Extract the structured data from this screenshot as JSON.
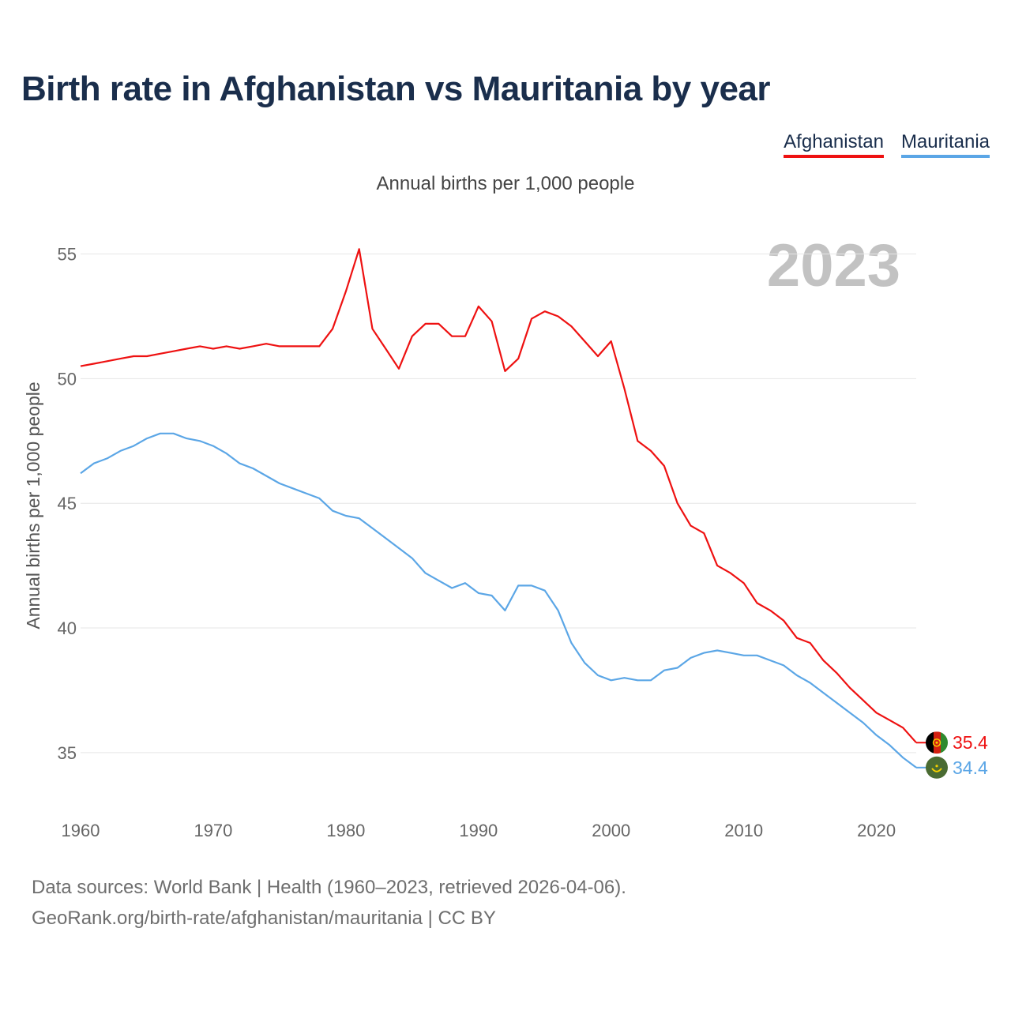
{
  "title": "Birth rate in Afghanistan vs Mauritania by year",
  "legend": [
    {
      "label": "Afghanistan",
      "color": "#ee1111"
    },
    {
      "label": "Mauritania",
      "color": "#5ba6e6"
    }
  ],
  "chart_data": {
    "type": "line",
    "title": "Birth rate in Afghanistan vs Mauritania by year",
    "subtitle": "Annual births per 1,000 people",
    "ylabel": "Annual births per 1,000 people",
    "xlabel": "",
    "year_label": "2023",
    "xlim": [
      1960,
      2023
    ],
    "ylim": [
      33,
      56
    ],
    "x_ticks": [
      1960,
      1970,
      1980,
      1990,
      2000,
      2010,
      2020
    ],
    "y_ticks": [
      35,
      40,
      45,
      50,
      55
    ],
    "grid": true,
    "x": [
      1960,
      1961,
      1962,
      1963,
      1964,
      1965,
      1966,
      1967,
      1968,
      1969,
      1970,
      1971,
      1972,
      1973,
      1974,
      1975,
      1976,
      1977,
      1978,
      1979,
      1980,
      1981,
      1982,
      1983,
      1984,
      1985,
      1986,
      1987,
      1988,
      1989,
      1990,
      1991,
      1992,
      1993,
      1994,
      1995,
      1996,
      1997,
      1998,
      1999,
      2000,
      2001,
      2002,
      2003,
      2004,
      2005,
      2006,
      2007,
      2008,
      2009,
      2010,
      2011,
      2012,
      2013,
      2014,
      2015,
      2016,
      2017,
      2018,
      2019,
      2020,
      2021,
      2022,
      2023
    ],
    "series": [
      {
        "name": "Afghanistan",
        "color": "#ee1111",
        "end_label": "35.4",
        "icon": "afghanistan-flag-icon",
        "values": [
          50.5,
          50.6,
          50.7,
          50.8,
          50.9,
          50.9,
          51.0,
          51.1,
          51.2,
          51.3,
          51.2,
          51.3,
          51.2,
          51.3,
          51.4,
          51.3,
          51.3,
          51.3,
          51.3,
          52.0,
          53.5,
          55.2,
          52.0,
          51.2,
          50.4,
          51.7,
          52.2,
          52.2,
          51.7,
          51.7,
          52.9,
          52.3,
          50.3,
          50.8,
          52.4,
          52.7,
          52.5,
          52.1,
          51.5,
          50.9,
          51.5,
          49.6,
          47.5,
          47.1,
          46.5,
          45.0,
          44.1,
          43.8,
          42.5,
          42.2,
          41.8,
          41.0,
          40.7,
          40.3,
          39.6,
          39.4,
          38.7,
          38.2,
          37.6,
          37.1,
          36.6,
          36.3,
          36.0,
          35.4
        ]
      },
      {
        "name": "Mauritania",
        "color": "#5ba6e6",
        "end_label": "34.4",
        "icon": "mauritania-flag-icon",
        "values": [
          46.2,
          46.6,
          46.8,
          47.1,
          47.3,
          47.6,
          47.8,
          47.8,
          47.6,
          47.5,
          47.3,
          47.0,
          46.6,
          46.4,
          46.1,
          45.8,
          45.6,
          45.4,
          45.2,
          44.7,
          44.5,
          44.4,
          44.0,
          43.6,
          43.2,
          42.8,
          42.2,
          41.9,
          41.6,
          41.8,
          41.4,
          41.3,
          40.7,
          41.7,
          41.7,
          41.5,
          40.7,
          39.4,
          38.6,
          38.1,
          37.9,
          38.0,
          37.9,
          37.9,
          38.3,
          38.4,
          38.8,
          39.0,
          39.1,
          39.0,
          38.9,
          38.9,
          38.7,
          38.5,
          38.1,
          37.8,
          37.4,
          37.0,
          36.6,
          36.2,
          35.7,
          35.3,
          34.8,
          34.4
        ]
      }
    ]
  },
  "footer": {
    "line1": "Data sources: World Bank | Health (1960–2023, retrieved 2026-04-06).",
    "line2": "GeoRank.org/birth-rate/afghanistan/mauritania | CC BY"
  }
}
